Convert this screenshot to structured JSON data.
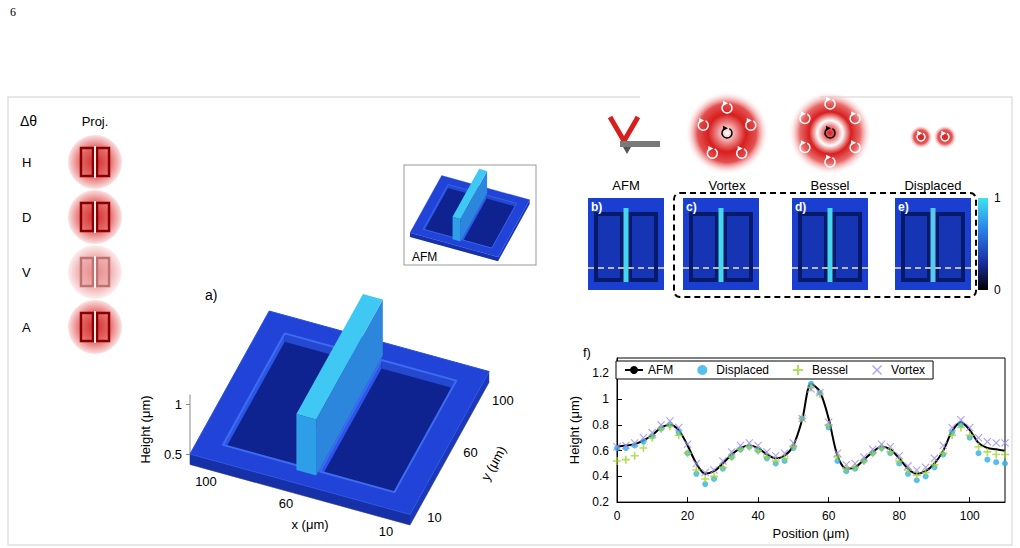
{
  "page": {
    "number": "6"
  },
  "projections": {
    "header": [
      "Δθ",
      "Proj."
    ],
    "rows": [
      "H",
      "D",
      "V",
      "A"
    ]
  },
  "panel_a": {
    "label": "a)",
    "inset": "AFM",
    "z_title": "Height (μm)",
    "zlim": [
      0.4,
      1.1
    ],
    "zticks": [
      0.5,
      1
    ],
    "x_title": "x (μm)",
    "xlim": [
      0,
      110
    ],
    "xticks": [
      10,
      60,
      100
    ],
    "y_title": "y (μm)",
    "ylim": [
      0,
      110
    ],
    "yticks": [
      10,
      60,
      100
    ]
  },
  "maps": {
    "labels": [
      "AFM",
      "Vortex",
      "Bessel",
      "Displaced"
    ],
    "letters": [
      "b)",
      "c)",
      "d)",
      "e)"
    ],
    "colorbar": {
      "range": [
        0,
        1
      ],
      "ticks": [
        0,
        1
      ]
    }
  },
  "chart_data": {
    "type": "line",
    "title": "f)",
    "xlabel": "Position (μm)",
    "ylabel": "Height (μm)",
    "xlim": [
      0,
      110
    ],
    "xticks": [
      0,
      20,
      40,
      60,
      80,
      100
    ],
    "ylim": [
      0.2,
      1.32
    ],
    "yticks": [
      0.2,
      0.4,
      0.6,
      0.8,
      1,
      1.2
    ],
    "grid": false,
    "legend": "top",
    "x": [
      0,
      2.5,
      5,
      7.5,
      10,
      12.5,
      15,
      17.5,
      20,
      22.5,
      25,
      27.5,
      30,
      32.5,
      35,
      37.5,
      40,
      42.5,
      45,
      47.5,
      50,
      52.5,
      55,
      57.5,
      60,
      62.5,
      65,
      67.5,
      70,
      72.5,
      75,
      77.5,
      80,
      82.5,
      85,
      87.5,
      90,
      92.5,
      95,
      97.5,
      100,
      102.5,
      105,
      107.5,
      110
    ],
    "series": [
      {
        "name": "AFM",
        "type": "line",
        "color": "#000000",
        "marker": "none",
        "line_style": "solid",
        "values": [
          0.63,
          0.64,
          0.65,
          0.68,
          0.72,
          0.78,
          0.8,
          0.76,
          0.64,
          0.5,
          0.42,
          0.44,
          0.5,
          0.57,
          0.62,
          0.64,
          0.62,
          0.57,
          0.54,
          0.56,
          0.64,
          0.84,
          1.12,
          1.06,
          0.85,
          0.56,
          0.46,
          0.47,
          0.53,
          0.59,
          0.63,
          0.61,
          0.54,
          0.46,
          0.42,
          0.44,
          0.5,
          0.6,
          0.75,
          0.82,
          0.76,
          0.66,
          0.62,
          0.61,
          0.6
        ]
      },
      {
        "name": "Displaced",
        "type": "scatter",
        "color": "#2ab0ea",
        "marker": "circle",
        "values": [
          0.62,
          0.62,
          0.64,
          0.67,
          0.71,
          0.77,
          0.8,
          0.74,
          0.58,
          0.42,
          0.34,
          0.38,
          0.46,
          0.55,
          0.61,
          0.63,
          0.6,
          0.54,
          0.5,
          0.52,
          0.62,
          0.85,
          1.12,
          1.05,
          0.78,
          0.52,
          0.44,
          0.46,
          0.52,
          0.58,
          0.62,
          0.58,
          0.5,
          0.42,
          0.37,
          0.4,
          0.47,
          0.57,
          0.74,
          0.8,
          0.7,
          0.58,
          0.53,
          0.51,
          0.5
        ]
      },
      {
        "name": "Bessel",
        "type": "scatter",
        "color": "#a3d42e",
        "marker": "plus",
        "values": [
          0.52,
          0.53,
          0.56,
          0.62,
          0.7,
          0.77,
          0.79,
          0.72,
          0.58,
          0.45,
          0.38,
          0.4,
          0.47,
          0.55,
          0.61,
          0.63,
          0.6,
          0.55,
          0.52,
          0.54,
          0.63,
          0.85,
          1.09,
          1.04,
          0.8,
          0.55,
          0.46,
          0.47,
          0.52,
          0.58,
          0.62,
          0.59,
          0.52,
          0.45,
          0.41,
          0.43,
          0.49,
          0.58,
          0.72,
          0.78,
          0.72,
          0.63,
          0.59,
          0.57,
          0.57
        ]
      },
      {
        "name": "Vortex",
        "type": "scatter",
        "color": "#9b8cf0",
        "marker": "x",
        "values": [
          0.63,
          0.64,
          0.66,
          0.7,
          0.74,
          0.8,
          0.83,
          0.78,
          0.65,
          0.5,
          0.43,
          0.45,
          0.52,
          0.59,
          0.64,
          0.66,
          0.64,
          0.59,
          0.56,
          0.58,
          0.66,
          0.85,
          1.08,
          1.05,
          0.82,
          0.58,
          0.49,
          0.5,
          0.55,
          0.61,
          0.65,
          0.63,
          0.56,
          0.48,
          0.45,
          0.47,
          0.54,
          0.64,
          0.78,
          0.84,
          0.78,
          0.7,
          0.67,
          0.66,
          0.66
        ]
      }
    ]
  }
}
